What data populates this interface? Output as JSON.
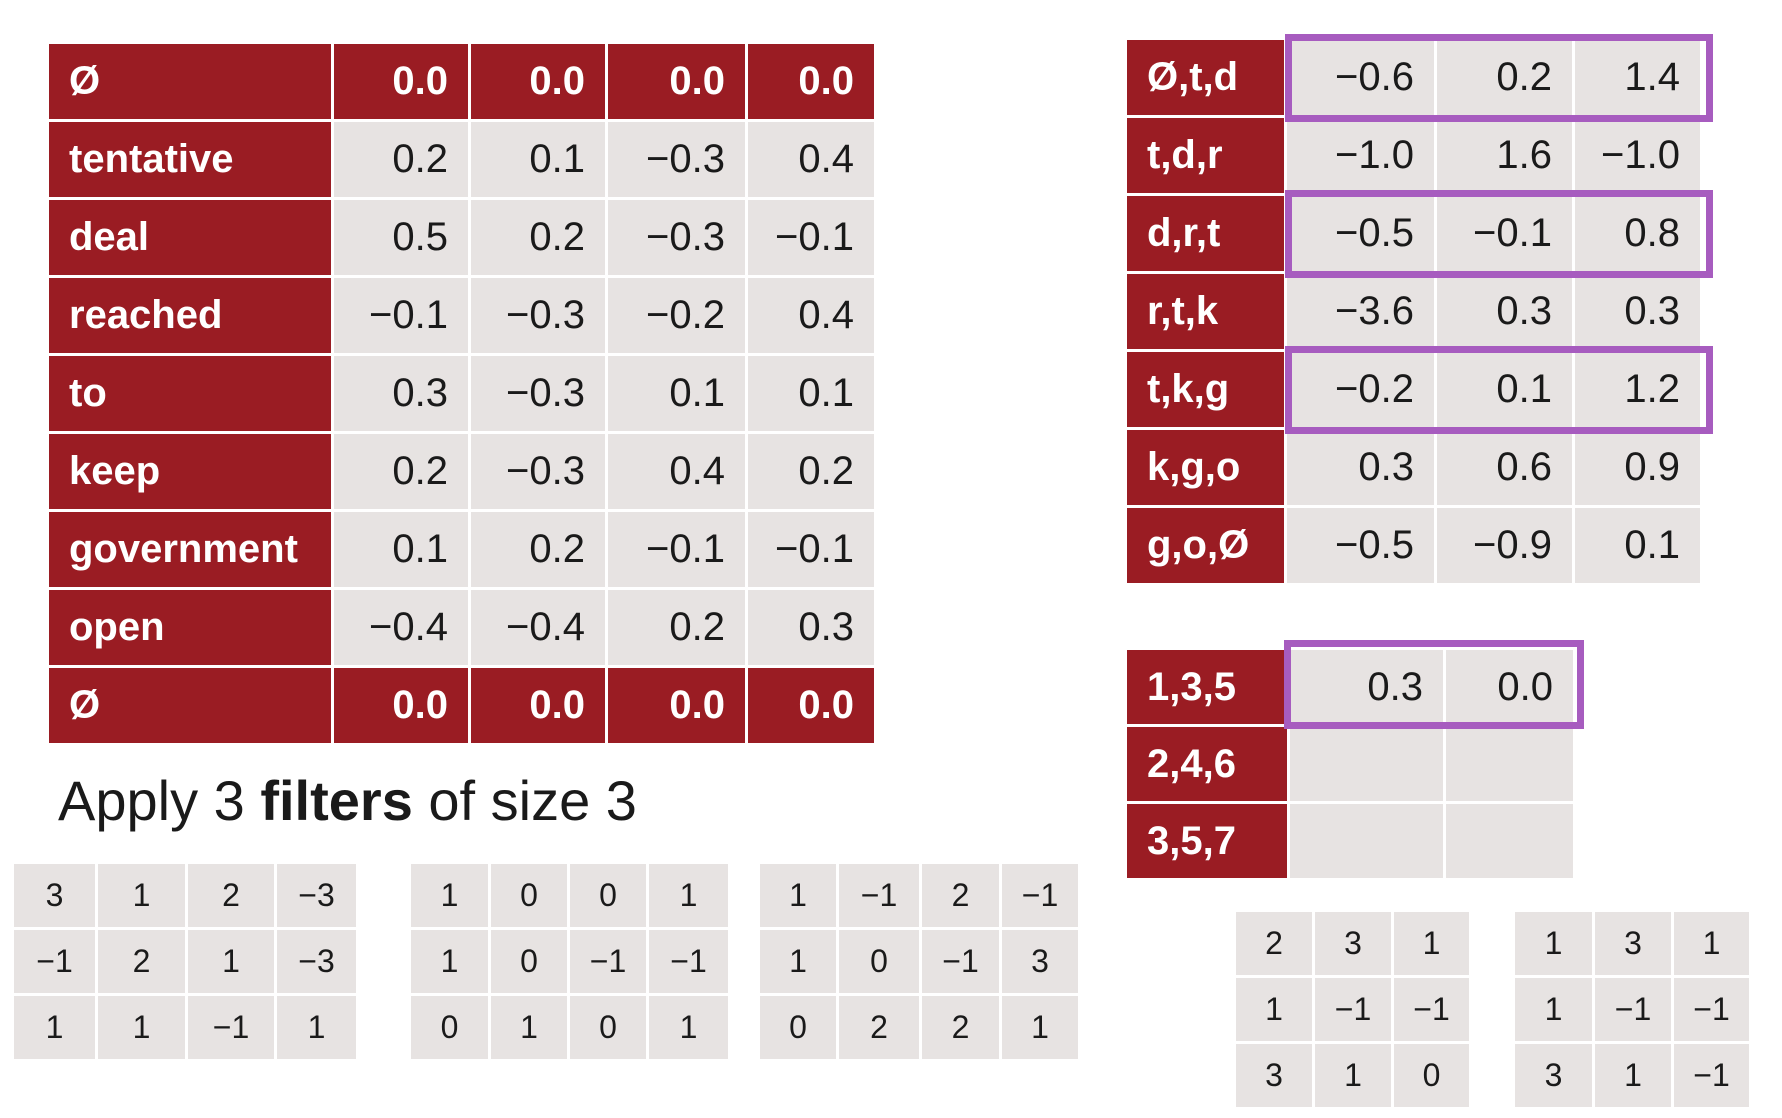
{
  "embedding_table": {
    "rows": [
      {
        "label": "Ø",
        "values": [
          "0.0",
          "0.0",
          "0.0",
          "0.0"
        ],
        "padding": true
      },
      {
        "label": "tentative",
        "values": [
          "0.2",
          "0.1",
          "−0.3",
          "0.4"
        ]
      },
      {
        "label": "deal",
        "values": [
          "0.5",
          "0.2",
          "−0.3",
          "−0.1"
        ]
      },
      {
        "label": "reached",
        "values": [
          "−0.1",
          "−0.3",
          "−0.2",
          "0.4"
        ]
      },
      {
        "label": "to",
        "values": [
          "0.3",
          "−0.3",
          "0.1",
          "0.1"
        ]
      },
      {
        "label": "keep",
        "values": [
          "0.2",
          "−0.3",
          "0.4",
          "0.2"
        ]
      },
      {
        "label": "government",
        "values": [
          "0.1",
          "0.2",
          "−0.1",
          "−0.1"
        ]
      },
      {
        "label": "open",
        "values": [
          "−0.4",
          "−0.4",
          "0.2",
          "0.3"
        ]
      },
      {
        "label": "Ø",
        "values": [
          "0.0",
          "0.0",
          "0.0",
          "0.0"
        ],
        "padding": true
      }
    ]
  },
  "caption": {
    "pre": "Apply 3 ",
    "bold": "filters",
    "post": " of size 3"
  },
  "filters": [
    {
      "rows": [
        [
          "3",
          "1",
          "2",
          "−3"
        ],
        [
          "−1",
          "2",
          "1",
          "−3"
        ],
        [
          "1",
          "1",
          "−1",
          "1"
        ]
      ]
    },
    {
      "rows": [
        [
          "1",
          "0",
          "0",
          "1"
        ],
        [
          "1",
          "0",
          "−1",
          "−1"
        ],
        [
          "0",
          "1",
          "0",
          "1"
        ]
      ]
    },
    {
      "rows": [
        [
          "1",
          "−1",
          "2",
          "−1"
        ],
        [
          "1",
          "0",
          "−1",
          "3"
        ],
        [
          "0",
          "2",
          "2",
          "1"
        ]
      ]
    }
  ],
  "conv_output": {
    "rows": [
      {
        "label": "Ø,t,d",
        "values": [
          "−0.6",
          "0.2",
          "1.4"
        ],
        "highlight": true
      },
      {
        "label": "t,d,r",
        "values": [
          "−1.0",
          "1.6",
          "−1.0"
        ]
      },
      {
        "label": "d,r,t",
        "values": [
          "−0.5",
          "−0.1",
          "0.8"
        ],
        "highlight": true
      },
      {
        "label": "r,t,k",
        "values": [
          "−3.6",
          "0.3",
          "0.3"
        ]
      },
      {
        "label": "t,k,g",
        "values": [
          "−0.2",
          "0.1",
          "1.2"
        ],
        "highlight": true
      },
      {
        "label": "k,g,o",
        "values": [
          "0.3",
          "0.6",
          "0.9"
        ]
      },
      {
        "label": "g,o,Ø",
        "values": [
          "−0.5",
          "−0.9",
          "0.1"
        ]
      }
    ]
  },
  "dilated_output": {
    "rows": [
      {
        "label": "1,3,5",
        "values": [
          "0.3",
          "0.0"
        ],
        "highlight": true
      },
      {
        "label": "2,4,6",
        "values": [
          "",
          ""
        ]
      },
      {
        "label": "3,5,7",
        "values": [
          "",
          ""
        ]
      }
    ]
  },
  "dilated_filters": [
    {
      "rows": [
        [
          "2",
          "3",
          "1"
        ],
        [
          "1",
          "−1",
          "−1"
        ],
        [
          "3",
          "1",
          "0"
        ]
      ]
    },
    {
      "rows": [
        [
          "1",
          "3",
          "1"
        ],
        [
          "1",
          "−1",
          "−1"
        ],
        [
          "3",
          "1",
          "−1"
        ]
      ]
    }
  ],
  "colors": {
    "header": "#9a1c23",
    "cell": "#e7e3e2",
    "highlight": "#a75cbf"
  }
}
